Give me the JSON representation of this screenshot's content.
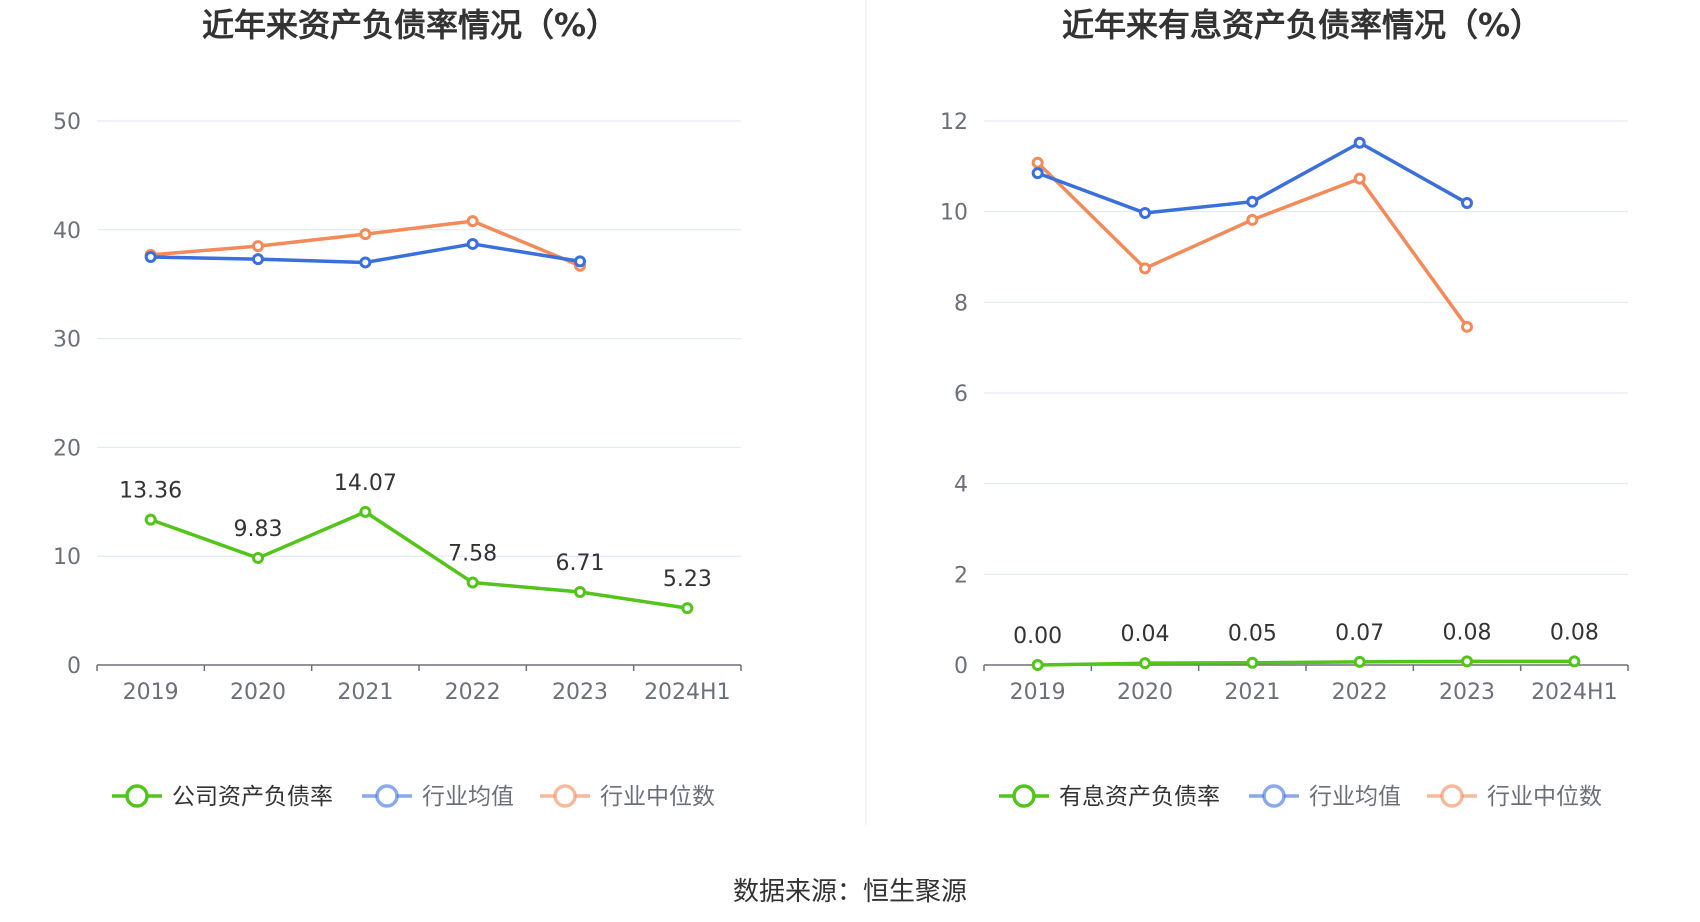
{
  "chart_data": [
    {
      "type": "line",
      "title": "近年来资产负债率情况（%）",
      "categories": [
        "2019",
        "2020",
        "2021",
        "2022",
        "2023",
        "2024H1"
      ],
      "ylim": [
        0,
        50
      ],
      "yticks": [
        "0",
        "10",
        "20",
        "30",
        "40",
        "50"
      ],
      "grid": true,
      "legend_position": "bottom",
      "series": [
        {
          "name": "公司资产负债率",
          "color": "#52c41a",
          "values": [
            13.36,
            9.83,
            14.07,
            7.58,
            6.71,
            5.23
          ],
          "labels": [
            "13.36",
            "9.83",
            "14.07",
            "7.58",
            "6.71",
            "5.23"
          ]
        },
        {
          "name": "行业均值",
          "color": "#3a6fdc",
          "values": [
            37.5,
            37.3,
            37.0,
            38.7,
            37.1,
            null
          ]
        },
        {
          "name": "行业中位数",
          "color": "#f28a5a",
          "values": [
            37.7,
            38.5,
            39.6,
            40.8,
            36.7,
            null
          ]
        }
      ]
    },
    {
      "type": "line",
      "title": "近年来有息资产负债率情况（%）",
      "categories": [
        "2019",
        "2020",
        "2021",
        "2022",
        "2023",
        "2024H1"
      ],
      "ylim": [
        0,
        12
      ],
      "yticks": [
        "0",
        "2",
        "4",
        "6",
        "8",
        "10",
        "12"
      ],
      "grid": true,
      "legend_position": "bottom",
      "series": [
        {
          "name": "有息资产负债率",
          "color": "#52c41a",
          "values": [
            0.0,
            0.04,
            0.05,
            0.07,
            0.08,
            0.08
          ],
          "labels": [
            "0.00",
            "0.04",
            "0.05",
            "0.07",
            "0.08",
            "0.08"
          ]
        },
        {
          "name": "行业均值",
          "color": "#3a6fdc",
          "values": [
            10.85,
            9.97,
            10.22,
            11.52,
            10.19,
            null
          ]
        },
        {
          "name": "行业中位数",
          "color": "#f28a5a",
          "values": [
            11.08,
            8.75,
            9.82,
            10.73,
            7.46,
            null
          ]
        }
      ]
    }
  ],
  "footer": {
    "source": "数据来源：恒生聚源"
  },
  "colors": {
    "grid": "#e0e6f1",
    "axis": "#6e7079",
    "divider": "#eeeeee"
  }
}
